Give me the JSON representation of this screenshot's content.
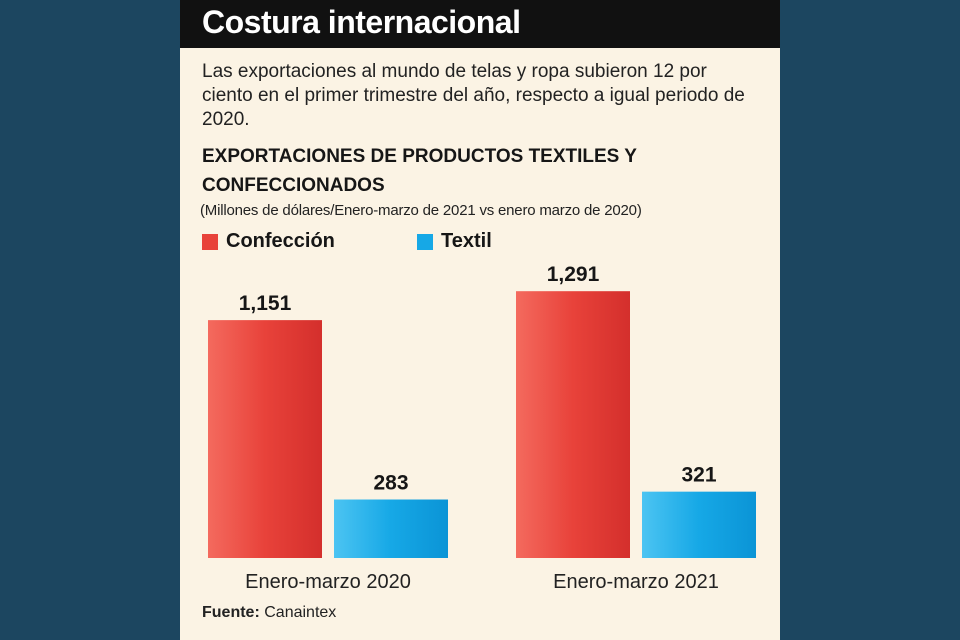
{
  "header": {
    "title": "Costura internacional",
    "intro": "Las exportaciones al mundo de telas y ropa subieron 12 por ciento en el primer trimestre del año, respecto a igual periodo de 2020."
  },
  "chart_data": {
    "type": "bar",
    "title": "EXPORTACIONES DE PRODUCTOS TEXTILES Y CONFECCIONADOS",
    "subtitle": "(Millones de dólares/Enero-marzo de 2021 vs enero marzo de 2020)",
    "categories": [
      "Enero-marzo 2020",
      "Enero-marzo 2021"
    ],
    "series": [
      {
        "name": "Confección",
        "values": [
          1151,
          1291
        ],
        "labels": [
          "1,151",
          "1,291"
        ],
        "color": "#e8423a"
      },
      {
        "name": "Textil",
        "values": [
          283,
          321
        ],
        "labels": [
          "283",
          "321"
        ],
        "color": "#16a8e6"
      }
    ],
    "ylim": [
      0,
      1500
    ],
    "grid": false,
    "legend_position": "top-left"
  },
  "footer": {
    "source_label": "Fuente:",
    "source_value": "Canaintex"
  }
}
